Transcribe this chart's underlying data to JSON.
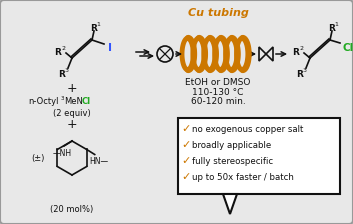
{
  "bg_color": "#e8e8e8",
  "box_bg": "#ffffff",
  "orange_color": "#CC7700",
  "green_color": "#22AA22",
  "blue_color": "#3355FF",
  "black_color": "#111111",
  "checkmarks": [
    "no exogenous copper salt",
    "broadly applicable",
    "fully stereospecific",
    "up to 50x faster / batch"
  ],
  "conditions": [
    "EtOH or DMSO",
    "110-130 °C",
    "60-120 min."
  ],
  "cu_tubing_label": "Cu tubing",
  "figsize": [
    3.53,
    2.24
  ],
  "dpi": 100
}
